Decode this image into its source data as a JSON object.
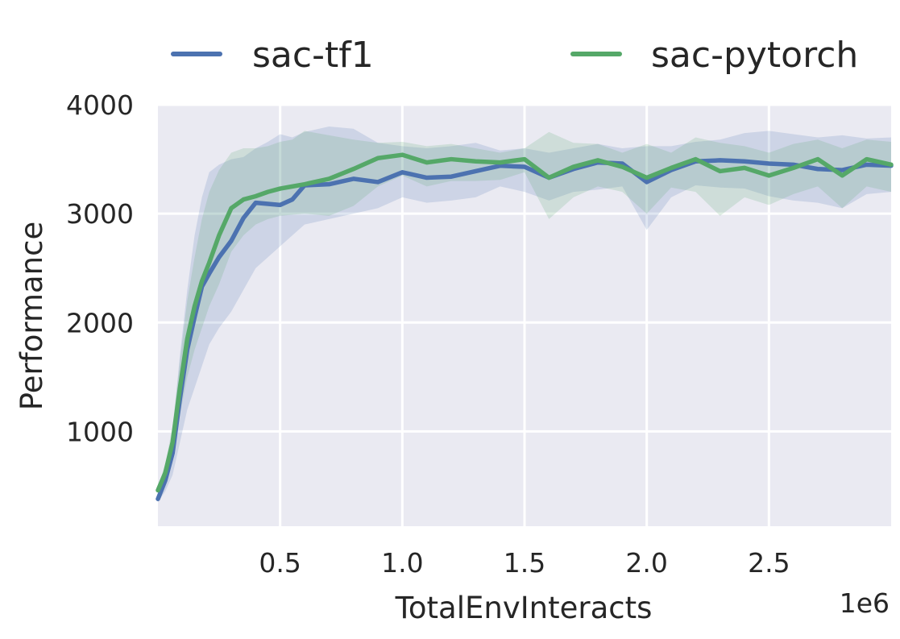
{
  "chart_data": {
    "type": "line",
    "title": "",
    "xlabel": "TotalEnvInteracts",
    "ylabel": "Performance",
    "x_multiplier_label": "1e6",
    "xlim": [
      0,
      3.0
    ],
    "ylim": [
      130,
      4000
    ],
    "xticks": [
      0.5,
      1.0,
      1.5,
      2.0,
      2.5
    ],
    "xtick_labels": [
      "0.5",
      "1.0",
      "1.5",
      "2.0",
      "2.5"
    ],
    "yticks": [
      1000,
      2000,
      3000,
      4000
    ],
    "ytick_labels": [
      "1000",
      "2000",
      "3000",
      "4000"
    ],
    "grid": true,
    "background": "#eaeaf2",
    "legend_placement": "top, above plot, 2 columns",
    "series": [
      {
        "name": "sac-tf1",
        "color": "#4c72b0",
        "x": [
          0.0,
          0.03,
          0.06,
          0.09,
          0.12,
          0.15,
          0.18,
          0.21,
          0.25,
          0.3,
          0.35,
          0.4,
          0.45,
          0.5,
          0.55,
          0.6,
          0.7,
          0.8,
          0.9,
          1.0,
          1.1,
          1.2,
          1.3,
          1.4,
          1.5,
          1.6,
          1.7,
          1.8,
          1.9,
          2.0,
          2.1,
          2.2,
          2.3,
          2.4,
          2.5,
          2.6,
          2.7,
          2.8,
          2.9,
          3.0
        ],
        "y": [
          380,
          550,
          800,
          1300,
          1750,
          2050,
          2330,
          2450,
          2600,
          2750,
          2960,
          3100,
          3090,
          3080,
          3130,
          3260,
          3270,
          3320,
          3290,
          3380,
          3330,
          3340,
          3390,
          3440,
          3430,
          3330,
          3410,
          3470,
          3460,
          3290,
          3400,
          3480,
          3490,
          3480,
          3460,
          3450,
          3410,
          3400,
          3450,
          3440
        ],
        "upper": [
          420,
          650,
          1000,
          1700,
          2300,
          2800,
          3150,
          3380,
          3450,
          3500,
          3520,
          3600,
          3660,
          3730,
          3700,
          3750,
          3800,
          3780,
          3650,
          3620,
          3600,
          3620,
          3650,
          3580,
          3600,
          3560,
          3600,
          3640,
          3600,
          3620,
          3620,
          3660,
          3680,
          3740,
          3760,
          3730,
          3700,
          3720,
          3690,
          3700
        ],
        "lower": [
          350,
          450,
          600,
          900,
          1200,
          1400,
          1600,
          1800,
          1950,
          2100,
          2300,
          2500,
          2600,
          2700,
          2800,
          2900,
          2950,
          3000,
          3050,
          3150,
          3100,
          3120,
          3150,
          3250,
          3200,
          3120,
          3200,
          3220,
          3250,
          2850,
          3150,
          3260,
          3240,
          3230,
          3160,
          3120,
          3100,
          3050,
          3180,
          3200
        ]
      },
      {
        "name": "sac-pytorch",
        "color": "#55a868",
        "x": [
          0.0,
          0.03,
          0.06,
          0.09,
          0.12,
          0.15,
          0.18,
          0.21,
          0.25,
          0.3,
          0.35,
          0.4,
          0.45,
          0.5,
          0.55,
          0.6,
          0.7,
          0.8,
          0.9,
          1.0,
          1.1,
          1.2,
          1.3,
          1.4,
          1.5,
          1.6,
          1.7,
          1.8,
          1.9,
          2.0,
          2.1,
          2.2,
          2.3,
          2.4,
          2.5,
          2.6,
          2.7,
          2.8,
          2.9,
          3.0
        ],
        "y": [
          460,
          620,
          900,
          1400,
          1850,
          2150,
          2380,
          2550,
          2800,
          3050,
          3130,
          3160,
          3200,
          3230,
          3250,
          3270,
          3320,
          3410,
          3510,
          3540,
          3470,
          3500,
          3480,
          3470,
          3500,
          3330,
          3430,
          3490,
          3430,
          3330,
          3420,
          3500,
          3390,
          3420,
          3350,
          3420,
          3500,
          3350,
          3500,
          3450
        ],
        "upper": [
          490,
          700,
          1050,
          1650,
          2200,
          2600,
          2950,
          3200,
          3400,
          3560,
          3600,
          3600,
          3620,
          3660,
          3680,
          3760,
          3720,
          3680,
          3650,
          3660,
          3620,
          3640,
          3600,
          3560,
          3600,
          3750,
          3650,
          3640,
          3560,
          3640,
          3560,
          3700,
          3650,
          3620,
          3560,
          3640,
          3680,
          3600,
          3680,
          3660
        ],
        "lower": [
          430,
          560,
          760,
          1150,
          1500,
          1750,
          1950,
          2150,
          2350,
          2650,
          2800,
          2900,
          2950,
          2980,
          2990,
          3000,
          2980,
          3070,
          3250,
          3350,
          3250,
          3300,
          3300,
          3310,
          3380,
          2950,
          3150,
          3250,
          3200,
          3000,
          3240,
          3200,
          2980,
          3150,
          3080,
          3180,
          3250,
          3050,
          3250,
          3200
        ]
      }
    ]
  }
}
